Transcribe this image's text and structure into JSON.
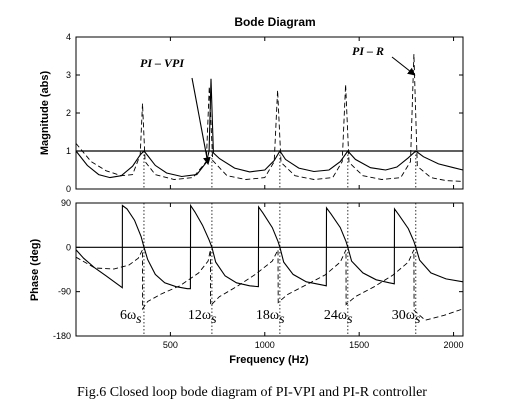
{
  "chart_data": {
    "type": "line",
    "title": "Bode Diagram",
    "xlabel": "Frequency (Hz)",
    "xlim": [
      0,
      2050
    ],
    "xticks": [
      0,
      500,
      1000,
      1500,
      2000
    ],
    "xtick_labels": [
      "",
      "500",
      "1000",
      "1500",
      "2000"
    ],
    "caption": "Fig.6 Closed loop bode diagram of PI-VPI and PI-R controller",
    "harmonics": [
      {
        "label": "6ω",
        "sub": "s",
        "x": 360
      },
      {
        "label": "12ω",
        "sub": "s",
        "x": 720
      },
      {
        "label": "18ω",
        "sub": "s",
        "x": 1080
      },
      {
        "label": "24ω",
        "sub": "s",
        "x": 1440
      },
      {
        "label": "30ω",
        "sub": "s",
        "x": 1800
      }
    ],
    "magnitude": {
      "ylabel": "Magnitude (abs)",
      "ylim": [
        0,
        4
      ],
      "yticks": [
        0,
        1,
        2,
        3,
        4
      ],
      "ytick_labels": [
        "0",
        "1",
        "2",
        "3",
        "4"
      ],
      "reference_line": 1,
      "annotations": [
        {
          "text": "PI – VPI",
          "target": [
            700,
            0.65
          ]
        },
        {
          "text": "PI – R",
          "target": [
            1795,
            3.0
          ]
        }
      ],
      "series": [
        {
          "name": "PI-VPI",
          "style": "solid",
          "points": [
            [
              0,
              1.0
            ],
            [
              60,
              0.62
            ],
            [
              120,
              0.38
            ],
            [
              180,
              0.3
            ],
            [
              240,
              0.35
            ],
            [
              300,
              0.6
            ],
            [
              340,
              0.9
            ],
            [
              360,
              1.0
            ],
            [
              380,
              0.88
            ],
            [
              420,
              0.62
            ],
            [
              480,
              0.42
            ],
            [
              560,
              0.33
            ],
            [
              640,
              0.38
            ],
            [
              690,
              0.7
            ],
            [
              705,
              1.0
            ],
            [
              715,
              2.9
            ],
            [
              728,
              0.95
            ],
            [
              760,
              0.8
            ],
            [
              840,
              0.55
            ],
            [
              920,
              0.45
            ],
            [
              1000,
              0.5
            ],
            [
              1050,
              0.75
            ],
            [
              1080,
              1.0
            ],
            [
              1110,
              0.78
            ],
            [
              1180,
              0.55
            ],
            [
              1260,
              0.46
            ],
            [
              1340,
              0.5
            ],
            [
              1400,
              0.72
            ],
            [
              1440,
              1.0
            ],
            [
              1480,
              0.78
            ],
            [
              1560,
              0.56
            ],
            [
              1640,
              0.5
            ],
            [
              1700,
              0.58
            ],
            [
              1760,
              0.82
            ],
            [
              1800,
              1.0
            ],
            [
              1840,
              0.85
            ],
            [
              1920,
              0.66
            ],
            [
              2000,
              0.56
            ],
            [
              2050,
              0.5
            ]
          ]
        },
        {
          "name": "PI-R",
          "style": "dashed",
          "points": [
            [
              0,
              1.2
            ],
            [
              80,
              0.72
            ],
            [
              160,
              0.48
            ],
            [
              240,
              0.35
            ],
            [
              300,
              0.38
            ],
            [
              340,
              0.9
            ],
            [
              352,
              2.25
            ],
            [
              366,
              0.72
            ],
            [
              420,
              0.38
            ],
            [
              520,
              0.25
            ],
            [
              620,
              0.3
            ],
            [
              690,
              0.72
            ],
            [
              706,
              2.7
            ],
            [
              724,
              0.75
            ],
            [
              800,
              0.35
            ],
            [
              900,
              0.25
            ],
            [
              1000,
              0.3
            ],
            [
              1050,
              0.72
            ],
            [
              1068,
              2.6
            ],
            [
              1086,
              0.7
            ],
            [
              1160,
              0.35
            ],
            [
              1260,
              0.25
            ],
            [
              1360,
              0.3
            ],
            [
              1410,
              0.72
            ],
            [
              1428,
              2.75
            ],
            [
              1446,
              0.7
            ],
            [
              1520,
              0.35
            ],
            [
              1620,
              0.25
            ],
            [
              1720,
              0.3
            ],
            [
              1772,
              0.72
            ],
            [
              1790,
              3.55
            ],
            [
              1808,
              0.6
            ],
            [
              1880,
              0.3
            ],
            [
              1960,
              0.22
            ],
            [
              2050,
              0.2
            ]
          ]
        }
      ]
    },
    "phase": {
      "ylabel": "Phase (deg)",
      "ylim": [
        -180,
        90
      ],
      "yticks": [
        -180,
        -90,
        0,
        90
      ],
      "ytick_labels": [
        "-180",
        "-90",
        "0",
        "90"
      ],
      "reference_line": 0,
      "series": [
        {
          "name": "PI-VPI",
          "style": "solid",
          "points": [
            [
              0,
              -5
            ],
            [
              40,
              -22
            ],
            [
              100,
              -42
            ],
            [
              160,
              -58
            ],
            [
              210,
              -72
            ],
            [
              245,
              -82
            ],
            [
              246,
              85
            ],
            [
              270,
              78
            ],
            [
              310,
              55
            ],
            [
              345,
              22
            ],
            [
              360,
              0
            ],
            [
              380,
              -25
            ],
            [
              420,
              -55
            ],
            [
              470,
              -72
            ],
            [
              530,
              -80
            ],
            [
              590,
              -84
            ],
            [
              606,
              -84
            ],
            [
              607,
              85
            ],
            [
              630,
              72
            ],
            [
              670,
              45
            ],
            [
              705,
              15
            ],
            [
              720,
              0
            ],
            [
              740,
              -30
            ],
            [
              790,
              -58
            ],
            [
              850,
              -72
            ],
            [
              920,
              -78
            ],
            [
              966,
              -80
            ],
            [
              967,
              82
            ],
            [
              990,
              70
            ],
            [
              1040,
              40
            ],
            [
              1070,
              12
            ],
            [
              1080,
              0
            ],
            [
              1100,
              -30
            ],
            [
              1150,
              -55
            ],
            [
              1220,
              -70
            ],
            [
              1300,
              -76
            ],
            [
              1326,
              -78
            ],
            [
              1327,
              80
            ],
            [
              1350,
              68
            ],
            [
              1400,
              40
            ],
            [
              1430,
              12
            ],
            [
              1440,
              0
            ],
            [
              1460,
              -28
            ],
            [
              1520,
              -52
            ],
            [
              1590,
              -66
            ],
            [
              1660,
              -72
            ],
            [
              1686,
              -74
            ],
            [
              1687,
              78
            ],
            [
              1710,
              66
            ],
            [
              1760,
              38
            ],
            [
              1790,
              12
            ],
            [
              1800,
              0
            ],
            [
              1820,
              -26
            ],
            [
              1880,
              -52
            ],
            [
              1960,
              -64
            ],
            [
              2050,
              -70
            ]
          ]
        },
        {
          "name": "PI-R",
          "style": "dashed",
          "points": [
            [
              0,
              -20
            ],
            [
              100,
              -42
            ],
            [
              200,
              -44
            ],
            [
              280,
              -36
            ],
            [
              330,
              -22
            ],
            [
              352,
              -5
            ],
            [
              353,
              -125
            ],
            [
              380,
              -110
            ],
            [
              450,
              -95
            ],
            [
              550,
              -78
            ],
            [
              650,
              -52
            ],
            [
              700,
              -28
            ],
            [
              712,
              -5
            ],
            [
              713,
              -118
            ],
            [
              760,
              -100
            ],
            [
              850,
              -80
            ],
            [
              950,
              -55
            ],
            [
              1040,
              -28
            ],
            [
              1070,
              -5
            ],
            [
              1071,
              -112
            ],
            [
              1120,
              -96
            ],
            [
              1220,
              -76
            ],
            [
              1320,
              -56
            ],
            [
              1400,
              -30
            ],
            [
              1430,
              -5
            ],
            [
              1431,
              -116
            ],
            [
              1480,
              -100
            ],
            [
              1580,
              -80
            ],
            [
              1680,
              -56
            ],
            [
              1760,
              -30
            ],
            [
              1790,
              -5
            ],
            [
              1791,
              -128
            ],
            [
              1850,
              -148
            ],
            [
              1950,
              -138
            ],
            [
              2050,
              -125
            ]
          ]
        }
      ]
    }
  }
}
